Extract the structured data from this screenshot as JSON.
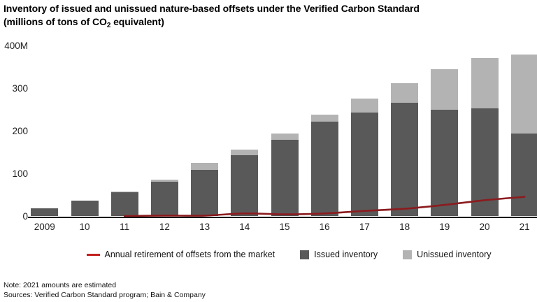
{
  "title": {
    "line1": "Inventory of issued and unissued nature-based offsets under the Verified Carbon Standard",
    "line2_prefix": "(millions of tons of CO",
    "line2_sub": "2",
    "line2_suffix": " equivalent)"
  },
  "colors": {
    "issued": "#595959",
    "unissued": "#b3b3b3",
    "retirement_line": "#8b1b1e",
    "legend_line_swatch": "#c2201d",
    "axis": "#141414"
  },
  "legend": {
    "items": [
      {
        "id": "retirement",
        "label": "Annual retirement of offsets from the market",
        "swatch": "line"
      },
      {
        "id": "issued",
        "label": "Issued inventory",
        "swatch": "square-dark"
      },
      {
        "id": "unissued",
        "label": "Unissued inventory",
        "swatch": "square-light"
      }
    ]
  },
  "footer": {
    "note": "Note: 2021 amounts are estimated",
    "sources": "Sources: Verified Carbon Standard program; Bain & Company"
  },
  "chart_data": {
    "type": "bar",
    "subtype": "stacked-bar-with-line",
    "title": "Inventory of issued and unissued nature-based offsets under the Verified Carbon Standard",
    "subtitle": "(millions of tons of CO2 equivalent)",
    "categories": [
      "2009",
      "10",
      "11",
      "12",
      "13",
      "14",
      "15",
      "16",
      "17",
      "18",
      "19",
      "20",
      "21"
    ],
    "series": [
      {
        "name": "Issued inventory",
        "type": "bar",
        "color": "#595959",
        "values": [
          18,
          36,
          56,
          80,
          108,
          143,
          179,
          221,
          243,
          265,
          249,
          252,
          194
        ]
      },
      {
        "name": "Unissued inventory",
        "type": "bar",
        "color": "#b3b3b3",
        "values": [
          0,
          0,
          2,
          6,
          16,
          12,
          15,
          16,
          32,
          46,
          96,
          119,
          184
        ]
      },
      {
        "name": "Annual retirement of offsets from the market",
        "type": "line",
        "color": "#8b1b1e",
        "values": [
          null,
          null,
          0,
          1,
          1,
          6,
          4,
          6,
          12,
          17,
          26,
          37,
          45
        ]
      }
    ],
    "ylim": [
      0,
      400
    ],
    "yticks": [
      {
        "value": 0,
        "label": "0"
      },
      {
        "value": 100,
        "label": "100"
      },
      {
        "value": 200,
        "label": "200"
      },
      {
        "value": 300,
        "label": "300"
      },
      {
        "value": 400,
        "label": "400M"
      }
    ],
    "grid": false,
    "legend_position": "bottom",
    "xlabel": "",
    "ylabel": ""
  }
}
